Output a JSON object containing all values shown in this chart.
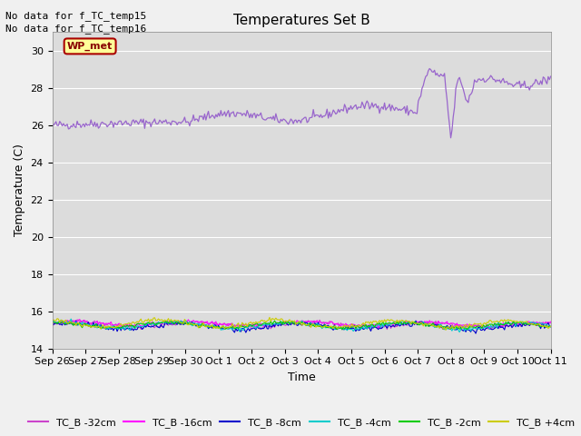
{
  "title": "Temperatures Set B",
  "xlabel": "Time",
  "ylabel": "Temperature (C)",
  "ylim": [
    14,
    31
  ],
  "yticks": [
    14,
    16,
    18,
    20,
    22,
    24,
    26,
    28,
    30
  ],
  "xtick_labels": [
    "Sep 26",
    "Sep 27",
    "Sep 28",
    "Sep 29",
    "Sep 30",
    "Oct 1",
    "Oct 2",
    "Oct 3",
    "Oct 4",
    "Oct 5",
    "Oct 6",
    "Oct 7",
    "Oct 8",
    "Oct 9",
    "Oct 10",
    "Oct 11"
  ],
  "no_data_texts": [
    "No data for f_TC_temp15",
    "No data for f_TC_temp16"
  ],
  "wp_met_label": "WP_met",
  "legend_entries": [
    "TC_B -32cm",
    "TC_B -16cm",
    "TC_B -8cm",
    "TC_B -4cm",
    "TC_B -2cm",
    "TC_B +4cm"
  ],
  "legend_colors": [
    "#cc44cc",
    "#ff00ff",
    "#0000cc",
    "#00cccc",
    "#00cc00",
    "#cccc00"
  ],
  "wp_met_line_color": "#9966cc",
  "wp_met_text_color": "#880000",
  "wp_met_bg": "#ffff99",
  "wp_met_edge": "#aa0000",
  "background_color": "#dcdcdc",
  "grid_color": "#ffffff",
  "fig_bg": "#f0f0f0",
  "n_points": 400
}
